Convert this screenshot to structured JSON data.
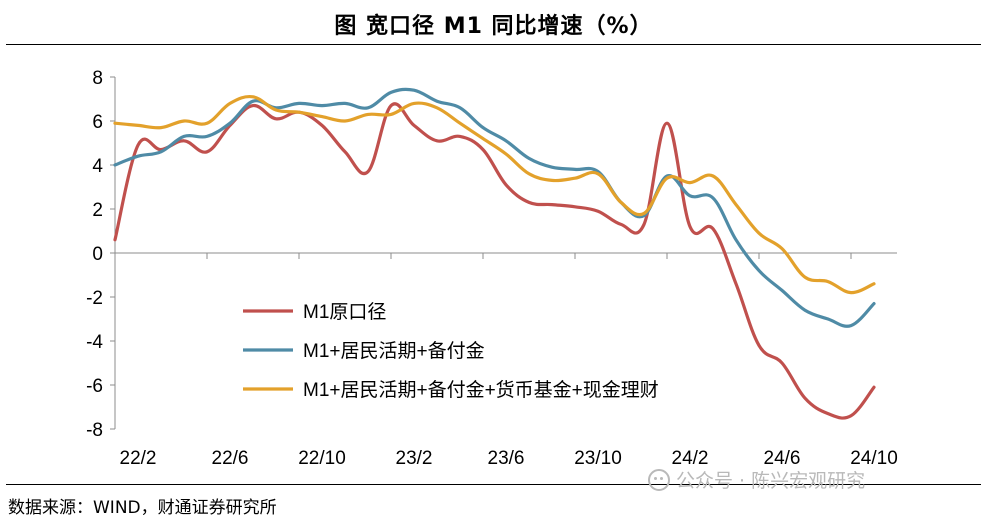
{
  "title": "图  宽口径 M1 同比增速（%）",
  "source": "数据来源：WIND，财通证券研究所",
  "watermark": "公众号 · 陈兴宏观研究",
  "chart_data": {
    "type": "line",
    "title": "图  宽口径 M1 同比增速（%）",
    "xlabel": "",
    "ylabel": "",
    "ylim": [
      -8,
      8
    ],
    "yticks": [
      8,
      6,
      4,
      2,
      0,
      -2,
      -4,
      -6,
      -8
    ],
    "xtick_labels": [
      "22/2",
      "22/6",
      "22/10",
      "23/2",
      "23/6",
      "23/10",
      "24/2",
      "24/6",
      "24/10"
    ],
    "x": [
      "22/1",
      "22/2",
      "22/3",
      "22/4",
      "22/5",
      "22/6",
      "22/7",
      "22/8",
      "22/9",
      "22/10",
      "22/11",
      "22/12",
      "23/1",
      "23/2",
      "23/3",
      "23/4",
      "23/5",
      "23/6",
      "23/7",
      "23/8",
      "23/9",
      "23/10",
      "23/11",
      "23/12",
      "24/1",
      "24/2",
      "24/3",
      "24/4",
      "24/5",
      "24/6",
      "24/7",
      "24/8",
      "24/9",
      "24/10",
      "24/11"
    ],
    "grid": false,
    "legend_position": "bottom-left",
    "series": [
      {
        "name": "M1原口径",
        "color": "#c0504d",
        "values": [
          0.6,
          4.9,
          4.7,
          5.1,
          4.6,
          5.8,
          6.7,
          6.1,
          6.4,
          5.8,
          4.6,
          3.7,
          6.7,
          5.8,
          5.1,
          5.3,
          4.7,
          3.1,
          2.3,
          2.2,
          2.1,
          1.9,
          1.3,
          1.3,
          5.9,
          1.2,
          1.1,
          -1.4,
          -4.2,
          -5.0,
          -6.6,
          -7.3,
          -7.4,
          -6.1,
          null
        ]
      },
      {
        "name": "M1+居民活期+备付金",
        "color": "#4f8ba6",
        "values": [
          4.0,
          4.4,
          4.6,
          5.3,
          5.3,
          5.9,
          6.9,
          6.6,
          6.8,
          6.7,
          6.8,
          6.6,
          7.3,
          7.4,
          6.9,
          6.6,
          5.7,
          5.1,
          4.3,
          3.9,
          3.8,
          3.7,
          2.3,
          1.7,
          3.5,
          2.6,
          2.5,
          0.6,
          -0.8,
          -1.7,
          -2.6,
          -3.0,
          -3.3,
          -2.3,
          null
        ]
      },
      {
        "name": "M1+居民活期+备付金+货币基金+现金理财",
        "color": "#e3a12b",
        "values": [
          5.9,
          5.8,
          5.7,
          6.0,
          5.9,
          6.8,
          7.1,
          6.5,
          6.4,
          6.2,
          6.0,
          6.3,
          6.3,
          6.8,
          6.6,
          5.9,
          5.2,
          4.5,
          3.6,
          3.3,
          3.4,
          3.6,
          2.3,
          1.8,
          3.4,
          3.2,
          3.5,
          2.2,
          0.9,
          0.2,
          -1.1,
          -1.3,
          -1.8,
          -1.4,
          null
        ]
      }
    ]
  }
}
